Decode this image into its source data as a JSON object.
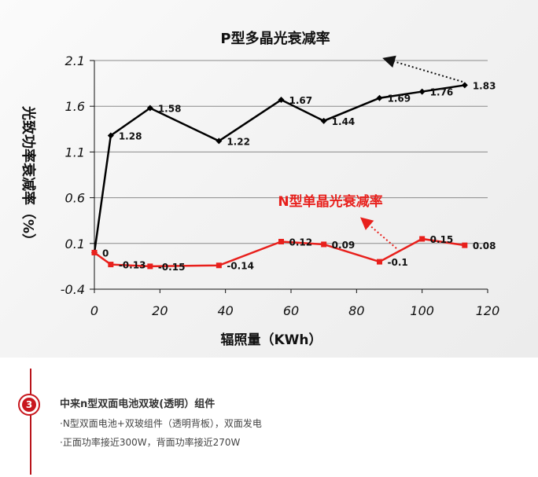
{
  "chart_data": {
    "type": "line",
    "title": "P型多晶光衰减率",
    "xlabel": "辐照量（KWh）",
    "ylabel": "光致功率衰减率（%）",
    "xlim": [
      0,
      120
    ],
    "ylim": [
      -0.4,
      2.1
    ],
    "x_ticks": [
      "0",
      "20",
      "40",
      "60",
      "80",
      "100",
      "120"
    ],
    "y_ticks": [
      "-0.4",
      "0.1",
      "0.6",
      "1.1",
      "1.6",
      "2.1"
    ],
    "grid": true,
    "series": [
      {
        "name": "P型多晶光衰减率",
        "color": "#000000",
        "marker": "diamond",
        "points": [
          {
            "x": 0,
            "y": 0,
            "label": ""
          },
          {
            "x": 5,
            "y": 1.28,
            "label": "1.28"
          },
          {
            "x": 17,
            "y": 1.58,
            "label": "1.58"
          },
          {
            "x": 38,
            "y": 1.22,
            "label": "1.22"
          },
          {
            "x": 57,
            "y": 1.67,
            "label": "1.67"
          },
          {
            "x": 70,
            "y": 1.44,
            "label": "1.44"
          },
          {
            "x": 87,
            "y": 1.69,
            "label": "1.69"
          },
          {
            "x": 100,
            "y": 1.76,
            "label": "1.76"
          },
          {
            "x": 113,
            "y": 1.83,
            "label": "1.83"
          }
        ]
      },
      {
        "name": "N型单晶光衰减率",
        "color": "#e8201c",
        "marker": "square",
        "points": [
          {
            "x": 0,
            "y": 0,
            "label": "0"
          },
          {
            "x": 5,
            "y": -0.13,
            "label": "-0.13"
          },
          {
            "x": 17,
            "y": -0.15,
            "label": "-0.15"
          },
          {
            "x": 38,
            "y": -0.14,
            "label": "-0.14"
          },
          {
            "x": 57,
            "y": 0.12,
            "label": "0.12"
          },
          {
            "x": 70,
            "y": 0.09,
            "label": "0.09"
          },
          {
            "x": 87,
            "y": -0.1,
            "label": "-0.1"
          },
          {
            "x": 100,
            "y": 0.15,
            "label": "0.15"
          },
          {
            "x": 113,
            "y": 0.08,
            "label": "0.08"
          }
        ]
      }
    ]
  },
  "info": {
    "badge": "3",
    "title": "中来n型双面电池双玻(透明）组件",
    "lines": [
      "·N型双面电池+双玻组件（透明背板），双面发电",
      "·正面功率接近300W，背面功率接近270W"
    ]
  }
}
